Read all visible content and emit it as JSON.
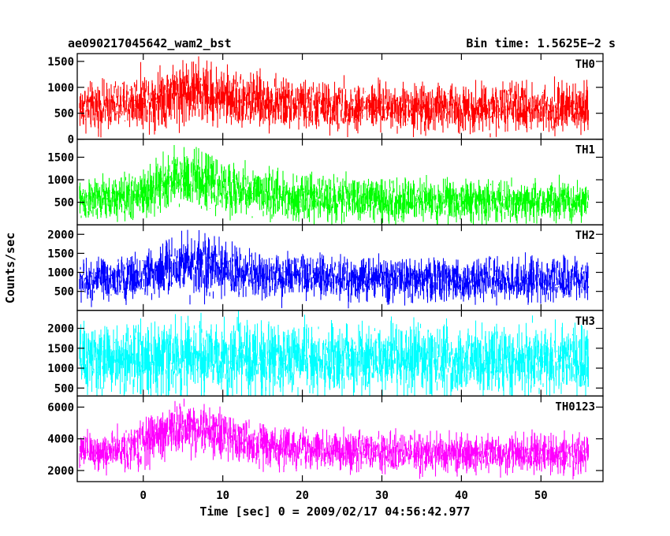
{
  "chart_data": {
    "type": "line",
    "title": "ae090217045642_wam2_bst",
    "bin_time": "Bin time: 1.5625E−2 s",
    "xlabel": "Time [sec] 0 = 2009/02/17 04:56:42.977",
    "ylabel": "Counts/sec",
    "xlim": [
      -8.3,
      57.8
    ],
    "grid": false,
    "x_ticks": [
      0,
      10,
      20,
      30,
      40,
      50
    ],
    "x_tick_labels": [
      "0",
      "10",
      "20",
      "30",
      "40",
      "50"
    ],
    "data_x_range": [
      -8.0,
      56.0
    ],
    "panels": [
      {
        "name": "TH0",
        "color": "#ff0000",
        "ylim": [
          0,
          1650
        ],
        "y_ticks": [
          0,
          500,
          1000,
          1500
        ],
        "y_tick_labels": [
          "0",
          "500",
          "1000",
          "1500"
        ],
        "profile": {
          "x": [
            -8,
            -4,
            0,
            2,
            5,
            7,
            10,
            15,
            20,
            30,
            40,
            56
          ],
          "mean": [
            620,
            640,
            760,
            820,
            930,
            900,
            820,
            720,
            650,
            620,
            610,
            600
          ],
          "spread": [
            260,
            260,
            300,
            320,
            360,
            350,
            320,
            290,
            270,
            260,
            260,
            260
          ]
        }
      },
      {
        "name": "TH1",
        "color": "#00ff00",
        "ylim": [
          0,
          1900
        ],
        "y_ticks": [
          500,
          1000,
          1500
        ],
        "y_tick_labels": [
          "500",
          "1000",
          "1500"
        ],
        "profile": {
          "x": [
            -8,
            -4,
            0,
            2,
            5,
            7,
            10,
            15,
            20,
            30,
            40,
            56
          ],
          "mean": [
            520,
            560,
            700,
            850,
            1050,
            980,
            820,
            680,
            600,
            560,
            540,
            520
          ],
          "spread": [
            260,
            270,
            310,
            350,
            400,
            390,
            340,
            300,
            280,
            270,
            260,
            260
          ]
        }
      },
      {
        "name": "TH2",
        "color": "#0000ff",
        "ylim": [
          0,
          2250
        ],
        "y_ticks": [
          500,
          1000,
          1500,
          2000
        ],
        "y_tick_labels": [
          "500",
          "1000",
          "1500",
          "2000"
        ],
        "profile": {
          "x": [
            -8,
            -4,
            0,
            2,
            5,
            7,
            10,
            15,
            20,
            30,
            40,
            56
          ],
          "mean": [
            780,
            800,
            900,
            1050,
            1250,
            1200,
            1050,
            920,
            860,
            820,
            800,
            790
          ],
          "spread": [
            320,
            320,
            360,
            420,
            480,
            460,
            400,
            360,
            340,
            330,
            320,
            320
          ]
        }
      },
      {
        "name": "TH3",
        "color": "#00ffff",
        "ylim": [
          300,
          2450
        ],
        "y_ticks": [
          500,
          1000,
          1500,
          2000
        ],
        "y_tick_labels": [
          "500",
          "1000",
          "1500",
          "2000"
        ],
        "profile": {
          "x": [
            -8,
            -4,
            0,
            2,
            5,
            7,
            10,
            15,
            20,
            30,
            40,
            56
          ],
          "mean": [
            1200,
            1210,
            1230,
            1240,
            1260,
            1250,
            1240,
            1230,
            1220,
            1210,
            1200,
            1200
          ],
          "spread": [
            500,
            500,
            520,
            520,
            540,
            530,
            520,
            510,
            500,
            500,
            500,
            500
          ]
        }
      },
      {
        "name": "TH0123",
        "color": "#ff00ff",
        "ylim": [
          1300,
          6700
        ],
        "y_ticks": [
          2000,
          4000,
          6000
        ],
        "y_tick_labels": [
          "2000",
          "4000",
          "6000"
        ],
        "profile": {
          "x": [
            -8,
            -4,
            0,
            2,
            5,
            7,
            10,
            15,
            20,
            30,
            40,
            56
          ],
          "mean": [
            3100,
            3200,
            3700,
            4300,
            4800,
            4600,
            4200,
            3600,
            3300,
            3150,
            3100,
            3050
          ],
          "spread": [
            700,
            700,
            800,
            900,
            1000,
            950,
            850,
            750,
            720,
            700,
            700,
            700
          ]
        }
      }
    ]
  }
}
